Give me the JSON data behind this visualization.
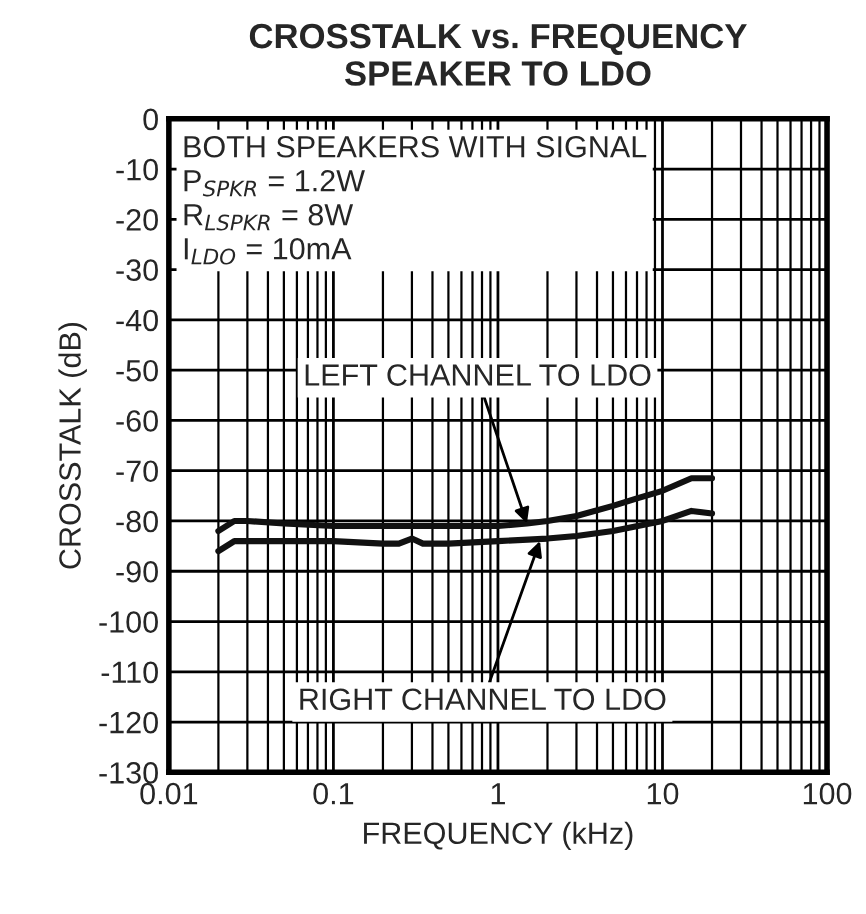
{
  "chart_data": {
    "type": "line",
    "title": "CROSSTALK vs. FREQUENCY\nSPEAKER TO LDO",
    "xlabel": "FREQUENCY (kHz)",
    "ylabel": "CROSSTALK (dB)",
    "log": "x",
    "xlim": [
      0.01,
      100
    ],
    "xticks": [
      0.01,
      0.1,
      1,
      10,
      100
    ],
    "ylim": [
      -130,
      0
    ],
    "yticks": [
      0,
      -10,
      -20,
      -30,
      -40,
      -50,
      -60,
      -70,
      -80,
      -90,
      -100,
      -110,
      -120,
      -130
    ],
    "grid": true,
    "series": [
      {
        "color": "#111111",
        "x": [
          0.02,
          0.025,
          0.03,
          0.05,
          0.1,
          0.2,
          0.3,
          0.5,
          1,
          1.5,
          2,
          3,
          5,
          7,
          10,
          15,
          20
        ],
        "values": [
          -82,
          -80,
          -80,
          -80.5,
          -81,
          -81,
          -81,
          -81,
          -81,
          -80.5,
          -80,
          -79,
          -77,
          -75.5,
          -74,
          -71.5,
          -71.5
        ]
      },
      {
        "color": "#111111",
        "x": [
          0.02,
          0.025,
          0.03,
          0.05,
          0.1,
          0.2,
          0.25,
          0.3,
          0.35,
          0.5,
          1,
          2,
          3,
          5,
          10,
          15,
          20
        ],
        "values": [
          -86,
          -84,
          -84,
          -84,
          -84,
          -84.5,
          -84.5,
          -83.5,
          -84.5,
          -84.5,
          -84,
          -83.5,
          -83,
          -82,
          -80,
          -78,
          -78.5
        ]
      }
    ],
    "annotations": [
      "BOTH SPEAKERS WITH SIGNAL\nP$_{SPKR}$ = 1.2W\nR$_{LSPKR}$ = 8W\nI$_{LDO}$ = 10mA",
      {
        "text": "LEFT CHANNEL TO LDO",
        "x": 1.5,
        "y": -80.5
      },
      {
        "text": "RIGHT CHANNEL TO LDO",
        "x": 1.8,
        "y": -84
      }
    ]
  }
}
